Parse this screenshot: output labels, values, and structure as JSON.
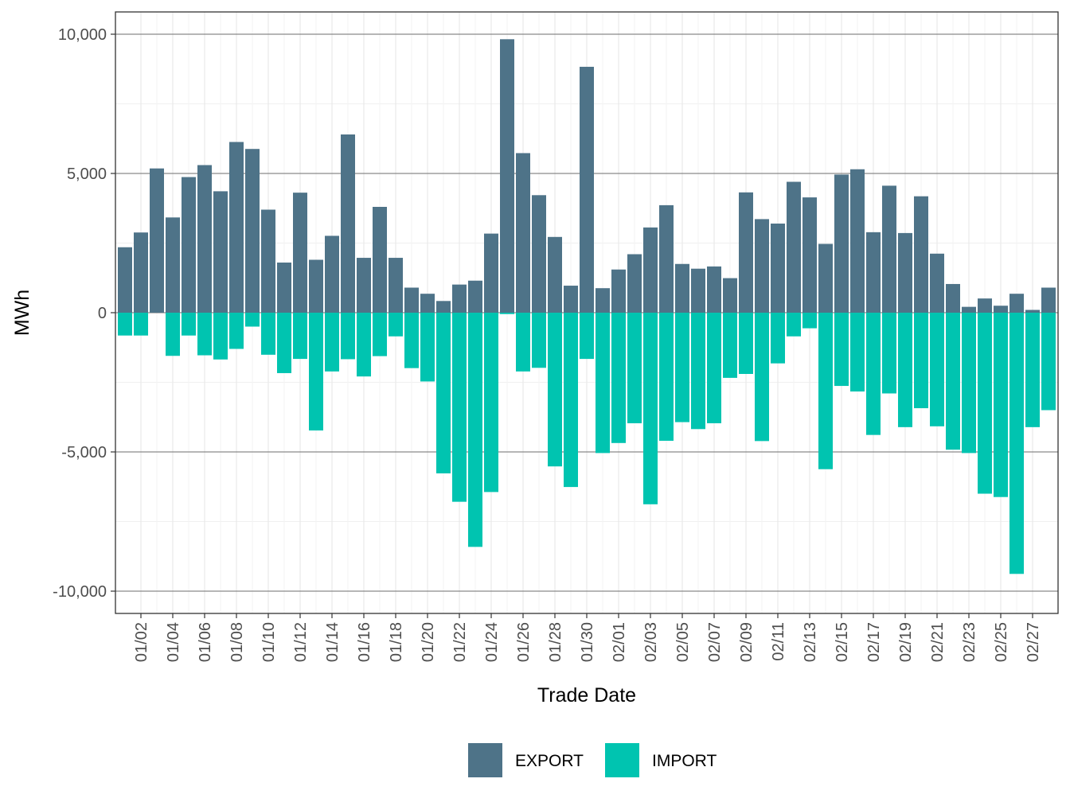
{
  "chart_data": {
    "type": "bar",
    "xlabel": "Trade Date",
    "ylabel": "MWh",
    "ylim": [
      -10800,
      10800
    ],
    "y_ticks": [
      -10000,
      -5000,
      0,
      5000,
      10000
    ],
    "y_tick_labels": [
      "-10,000",
      "-5,000",
      "0",
      "5,000",
      "10,000"
    ],
    "x_tick_labels": [
      "01/02",
      "01/04",
      "01/06",
      "01/08",
      "01/10",
      "01/12",
      "01/14",
      "01/16",
      "01/18",
      "01/20",
      "01/22",
      "01/24",
      "01/26",
      "01/28",
      "01/30",
      "02/01",
      "02/03",
      "02/05",
      "02/07",
      "02/09",
      "02/11",
      "02/13",
      "02/15",
      "02/17",
      "02/19",
      "02/21",
      "02/23",
      "02/25",
      "02/27"
    ],
    "grid": true,
    "legend_position": "bottom",
    "dates": [
      "01/01",
      "01/02",
      "01/03",
      "01/04",
      "01/05",
      "01/06",
      "01/07",
      "01/08",
      "01/09",
      "01/10",
      "01/11",
      "01/12",
      "01/13",
      "01/14",
      "01/15",
      "01/16",
      "01/17",
      "01/18",
      "01/19",
      "01/20",
      "01/21",
      "01/22",
      "01/23",
      "01/24",
      "01/25",
      "01/26",
      "01/27",
      "01/28",
      "01/29",
      "01/30",
      "01/31",
      "02/01",
      "02/02",
      "02/03",
      "02/04",
      "02/05",
      "02/06",
      "02/07",
      "02/08",
      "02/09",
      "02/10",
      "02/11",
      "02/12",
      "02/13",
      "02/14",
      "02/15",
      "02/16",
      "02/17",
      "02/18",
      "02/19",
      "02/20",
      "02/21",
      "02/22",
      "02/23",
      "02/24",
      "02/25",
      "02/26",
      "02/27",
      "02/28"
    ],
    "series": [
      {
        "name": "EXPORT",
        "color": "#4e7388",
        "values": [
          2350,
          2880,
          5180,
          3420,
          4870,
          5300,
          4360,
          6130,
          5880,
          3700,
          1800,
          4310,
          1900,
          2760,
          6400,
          1970,
          3800,
          1970,
          900,
          680,
          420,
          1010,
          1150,
          2840,
          9820,
          5730,
          4220,
          2720,
          970,
          8830,
          880,
          1550,
          2100,
          3060,
          3860,
          1750,
          1580,
          1660,
          1240,
          4320,
          3360,
          3200,
          4700,
          4140,
          2470,
          4960,
          5150,
          2890,
          4560,
          2860,
          4180,
          2120,
          1030,
          210,
          510,
          250,
          680,
          100,
          900
        ]
      },
      {
        "name": "IMPORT",
        "color": "#00c4b0",
        "values": [
          -820,
          -820,
          0,
          -1550,
          -820,
          -1530,
          -1680,
          -1300,
          -500,
          -1510,
          -2170,
          -1660,
          -4230,
          -2110,
          -1670,
          -2290,
          -1560,
          -850,
          -1990,
          -2470,
          -5770,
          -6790,
          -8410,
          -6440,
          -50,
          -2110,
          -1980,
          -5520,
          -6260,
          -1660,
          -5040,
          -4680,
          -3970,
          -6880,
          -4600,
          -3930,
          -4180,
          -3970,
          -2340,
          -2200,
          -4610,
          -1820,
          -850,
          -560,
          -5620,
          -2630,
          -2830,
          -4390,
          -2900,
          -4110,
          -3430,
          -4080,
          -4920,
          -5040,
          -6500,
          -6620,
          -9380,
          -4110,
          -3500
        ]
      }
    ]
  }
}
